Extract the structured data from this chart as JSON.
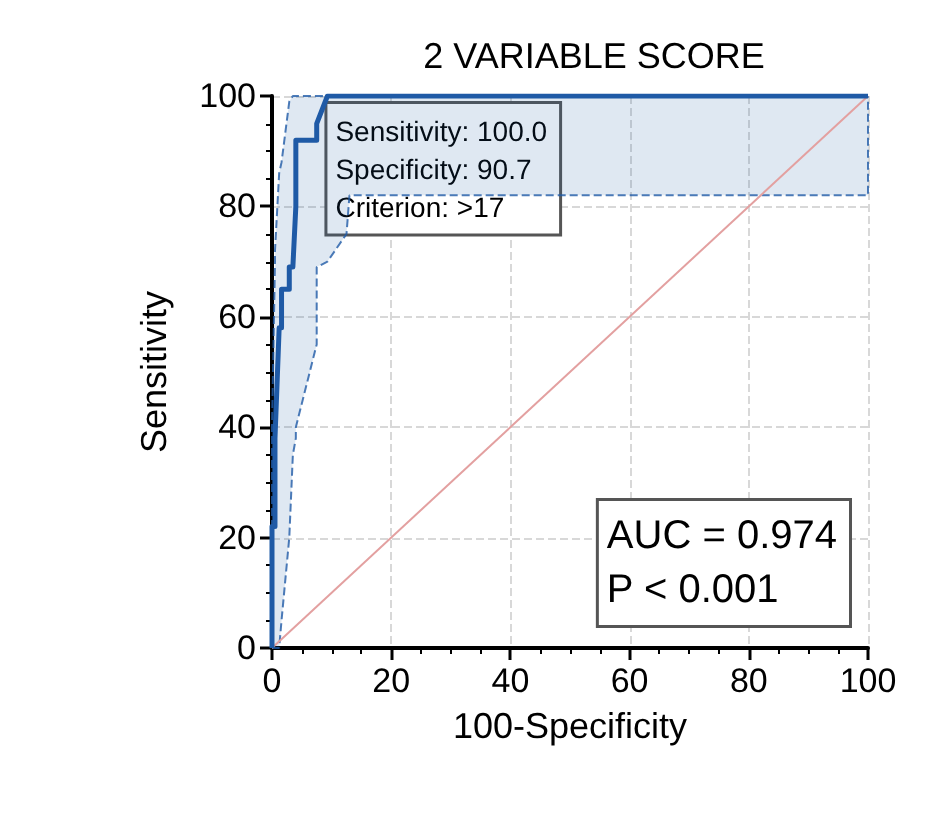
{
  "chart_data": {
    "type": "line",
    "title": "2 VARIABLE SCORE",
    "xlabel": "100-Specificity",
    "ylabel": "Sensitivity",
    "xlim": [
      0,
      100
    ],
    "ylim": [
      0,
      100
    ],
    "xticks": [
      0,
      20,
      40,
      60,
      80,
      100
    ],
    "yticks": [
      0,
      20,
      40,
      60,
      80,
      100
    ],
    "grid": true,
    "marker": "none",
    "series": [
      {
        "color": "#1f5aa6",
        "x": [
          0,
          0,
          0.5,
          0.5,
          1.2,
          1.6,
          1.6,
          2.9,
          2.9,
          3.5,
          4,
          4,
          7.5,
          7.5,
          9.3,
          12.5,
          13,
          100,
          100
        ],
        "values": [
          0,
          22,
          22,
          38,
          58,
          58,
          65,
          65,
          69,
          69,
          80,
          92,
          92,
          95,
          100,
          100,
          100,
          100,
          100
        ],
        "lower": [
          0,
          0,
          0,
          0,
          0,
          5,
          5,
          20,
          20,
          35,
          38,
          40,
          55,
          69,
          70,
          75,
          82,
          82,
          100
        ],
        "upper": [
          0,
          40,
          70,
          72,
          86,
          88,
          88,
          99,
          99,
          100,
          100,
          100,
          100,
          100,
          100,
          100,
          100,
          100,
          100
        ]
      },
      {
        "color": "#e3a0a0",
        "x": [
          0,
          100
        ],
        "values": [
          0,
          100
        ]
      }
    ],
    "annotations": [
      {
        "text": "Sensitivity: 100.0\nSpecificity: 90.7\nCriterion: >17",
        "x": 9.3,
        "y": 100
      },
      "AUC = 0.974\nP < 0.001"
    ]
  }
}
